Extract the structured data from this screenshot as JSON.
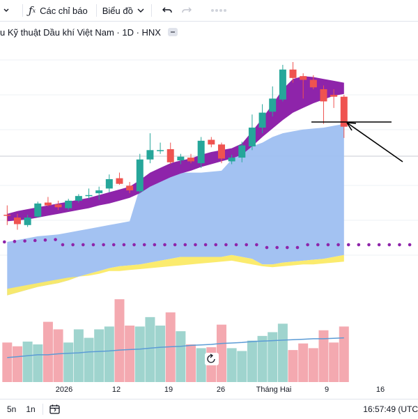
{
  "toolbar": {
    "indicators_label": "Các chỉ báo",
    "chart_type_label": "Biểu đồ"
  },
  "legend": {
    "title": "u Kỹ thuật Dầu khí Việt Nam · 1D · HNX"
  },
  "bottom": {
    "range_5d": "5n",
    "range_1m": "1n",
    "time": "16:57:49 (UTC"
  },
  "colors": {
    "up": "#26a69a",
    "down": "#ef5350",
    "cloud_bull": "#9ebff1",
    "cloud_bear": "#fbea66",
    "ribbon": "#8e24aa",
    "lagging_dots": "#8e24aa",
    "volume_ma": "#5b9bd5"
  },
  "chart_data": {
    "type": "candlestick",
    "x_tick_labels": [
      "2026",
      "12",
      "19",
      "26",
      "Tháng Hai",
      "9",
      "16"
    ],
    "candles": [
      {
        "o": 28.5,
        "h": 29.5,
        "l": 27.4,
        "c": 28.4
      },
      {
        "o": 28.2,
        "h": 28.6,
        "l": 26.9,
        "c": 27.5
      },
      {
        "o": 27.4,
        "h": 28.5,
        "l": 27.2,
        "c": 28.2
      },
      {
        "o": 28.3,
        "h": 29.9,
        "l": 28.2,
        "c": 29.7
      },
      {
        "o": 29.8,
        "h": 30.4,
        "l": 29.4,
        "c": 29.5
      },
      {
        "o": 29.6,
        "h": 30.0,
        "l": 29.0,
        "c": 29.3
      },
      {
        "o": 29.2,
        "h": 30.2,
        "l": 29.0,
        "c": 30.0
      },
      {
        "o": 30.0,
        "h": 30.7,
        "l": 29.8,
        "c": 30.5
      },
      {
        "o": 30.5,
        "h": 31.3,
        "l": 30.2,
        "c": 30.6
      },
      {
        "o": 30.8,
        "h": 31.5,
        "l": 30.1,
        "c": 31.1
      },
      {
        "o": 31.3,
        "h": 32.8,
        "l": 30.9,
        "c": 32.3
      },
      {
        "o": 32.4,
        "h": 33.0,
        "l": 31.7,
        "c": 31.8
      },
      {
        "o": 31.6,
        "h": 32.0,
        "l": 30.8,
        "c": 31.1
      },
      {
        "o": 31.0,
        "h": 35.0,
        "l": 30.8,
        "c": 34.4
      },
      {
        "o": 34.4,
        "h": 37.2,
        "l": 34.0,
        "c": 35.4
      },
      {
        "o": 35.3,
        "h": 36.2,
        "l": 35.0,
        "c": 35.4
      },
      {
        "o": 35.5,
        "h": 36.2,
        "l": 33.9,
        "c": 34.1
      },
      {
        "o": 34.3,
        "h": 35.0,
        "l": 33.9,
        "c": 34.7
      },
      {
        "o": 34.6,
        "h": 35.0,
        "l": 34.0,
        "c": 34.2
      },
      {
        "o": 34.0,
        "h": 36.8,
        "l": 33.5,
        "c": 36.4
      },
      {
        "o": 36.5,
        "h": 36.8,
        "l": 35.7,
        "c": 36.0
      },
      {
        "o": 36.0,
        "h": 36.2,
        "l": 34.0,
        "c": 34.5
      },
      {
        "o": 34.2,
        "h": 34.9,
        "l": 33.9,
        "c": 34.6
      },
      {
        "o": 34.6,
        "h": 36.3,
        "l": 34.1,
        "c": 35.9
      },
      {
        "o": 35.8,
        "h": 39.2,
        "l": 35.4,
        "c": 37.8
      },
      {
        "o": 37.8,
        "h": 40.3,
        "l": 37.2,
        "c": 39.4
      },
      {
        "o": 39.5,
        "h": 42.2,
        "l": 39.0,
        "c": 40.9
      },
      {
        "o": 40.8,
        "h": 44.5,
        "l": 40.6,
        "c": 44.0
      },
      {
        "o": 44.0,
        "h": 44.8,
        "l": 42.6,
        "c": 43.1
      },
      {
        "o": 43.3,
        "h": 43.6,
        "l": 40.9,
        "c": 42.9
      },
      {
        "o": 42.9,
        "h": 43.4,
        "l": 41.9,
        "c": 42.1
      },
      {
        "o": 41.9,
        "h": 42.3,
        "l": 38.2,
        "c": 40.6
      },
      {
        "o": 41.3,
        "h": 41.9,
        "l": 39.9,
        "c": 41.1
      },
      {
        "o": 41.1,
        "h": 41.3,
        "l": 36.7,
        "c": 37.9
      }
    ],
    "cloud": {
      "upper": [
        25.6,
        25.8,
        26.0,
        26.2,
        26.3,
        26.4,
        26.6,
        26.8,
        27.0,
        27.2,
        27.4,
        27.6,
        27.8,
        31.4,
        32.8,
        32.9,
        32.9,
        33.0,
        33.0,
        33.0,
        33.1,
        33.2,
        34.4,
        35.7,
        35.8,
        36.2,
        36.8,
        37.2,
        37.4,
        37.6,
        37.7,
        37.8,
        38.0,
        38.2
      ],
      "lower": [
        19.9,
        20.2,
        20.5,
        20.8,
        21.0,
        21.2,
        21.5,
        21.9,
        22.2,
        22.5,
        22.8,
        23.0,
        23.1,
        23.2,
        23.4,
        23.6,
        23.8,
        24.0,
        24.0,
        24.0,
        24.0,
        24.0,
        24.2,
        24.0,
        23.8,
        23.2,
        23.2,
        23.4,
        23.5,
        23.6,
        23.7,
        23.8,
        24.0,
        24.2
      ],
      "bear_bottom": [
        20.6,
        20.8,
        21.0,
        21.2,
        21.4,
        21.6,
        21.8,
        21.9,
        22.0,
        22.2,
        22.5,
        22.5,
        22.6,
        22.7,
        22.8,
        22.9,
        23.0,
        23.1,
        23.2,
        23.3,
        23.4,
        23.5,
        23.6,
        23.4,
        23.2,
        23.0,
        22.9,
        23.0,
        23.1,
        23.2,
        23.2,
        23.3,
        23.4,
        23.5
      ]
    },
    "ribbon": {
      "top": [
        28.6,
        28.9,
        29.1,
        29.3,
        29.5,
        29.7,
        29.9,
        30.1,
        30.3,
        30.6,
        30.9,
        31.2,
        31.5,
        32.2,
        33.0,
        33.5,
        34.0,
        34.3,
        34.5,
        34.9,
        35.2,
        35.4,
        35.6,
        36.1,
        37.4,
        38.8,
        40.3,
        41.9,
        43.0,
        43.3,
        43.2,
        43.0,
        42.8,
        42.6
      ],
      "bottom": [
        27.8,
        27.9,
        28.0,
        28.2,
        28.4,
        28.6,
        28.8,
        29.0,
        29.2,
        29.5,
        29.7,
        30.0,
        30.3,
        30.8,
        31.5,
        32.0,
        32.5,
        32.9,
        33.2,
        33.6,
        33.9,
        34.2,
        34.5,
        34.9,
        35.8,
        36.8,
        37.7,
        38.6,
        39.4,
        39.9,
        40.4,
        40.8,
        41.2,
        41.4
      ]
    },
    "lagging_dots_level": 25.3,
    "lagging_start_index": 6,
    "volume": [
      4.2,
      3.8,
      4.3,
      4.0,
      6.4,
      5.6,
      4.2,
      5.6,
      4.7,
      5.6,
      5.9,
      8.8,
      6.0,
      5.9,
      6.9,
      6.0,
      7.4,
      5.4,
      4.0,
      3.6,
      3.7,
      6.1,
      3.6,
      3.3,
      4.4,
      4.9,
      5.3,
      6.2,
      3.4,
      4.1,
      3.6,
      5.5,
      4.2,
      5.9
    ],
    "volume_ma": [
      2.6,
      2.7,
      2.8,
      2.9,
      2.9,
      3.0,
      3.05,
      3.1,
      3.2,
      3.25,
      3.3,
      3.4,
      3.45,
      3.5,
      3.6,
      3.7,
      3.75,
      3.8,
      3.9,
      3.95,
      4.0,
      4.1,
      4.15,
      4.2,
      4.3,
      4.35,
      4.4,
      4.45,
      4.5,
      4.55,
      4.6,
      4.6,
      4.65,
      4.7
    ]
  }
}
